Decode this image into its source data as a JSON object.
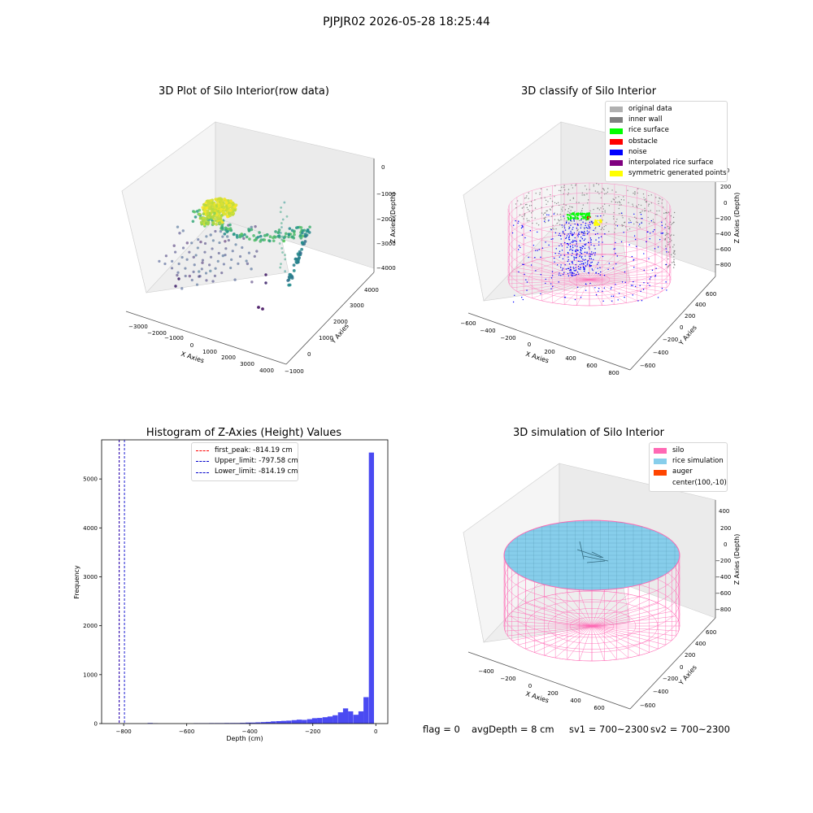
{
  "figure_title": "PJPJR02 2026-05-28 18:25:44",
  "footer": {
    "flag": "flag = 0",
    "avg_depth": "avgDepth = 8 cm",
    "sv1": "sv1 = 700~2300",
    "sv2": "sv2 = 700~2300"
  },
  "colors": {
    "histogram_bar": "#4a4af2",
    "first_peak_line": "#ff0000",
    "limit_lines": "#0000cc",
    "silo_mesh": "#ff69b4",
    "rice_surface": "#87ceeb",
    "pane_gray": "#f2f2f2",
    "grid": "#d9d9d9"
  },
  "chart_data": [
    {
      "id": "raw",
      "type": "scatter",
      "projection": "3d",
      "title": "3D Plot of Silo Interior(row data)",
      "xlabel": "X Axies",
      "ylabel": "Y Axies",
      "zlabel": "Z Axies (Depth)",
      "xticks": [
        "−3000",
        "−2000",
        "−1000",
        "0",
        "1000",
        "2000",
        "3000",
        "4000"
      ],
      "yticks": [
        "−1000",
        "0",
        "1000",
        "2000",
        "3000",
        "4000"
      ],
      "zticks": [
        "0",
        "−1000",
        "−2000",
        "−3000",
        "−4000"
      ],
      "colormap": "viridis"
    },
    {
      "id": "classify",
      "type": "scatter",
      "projection": "3d",
      "title": "3D classify of Silo Interior",
      "xlabel": "X Axies",
      "ylabel": "Y Axies",
      "zlabel": "Z Axies (Depth)",
      "xticks": [
        "−600",
        "−400",
        "−200",
        "0",
        "200",
        "400",
        "600",
        "800"
      ],
      "yticks": [
        "−600",
        "−400",
        "−200",
        "0",
        "200",
        "400",
        "600"
      ],
      "zticks": [
        "400",
        "200",
        "0",
        "−200",
        "−400",
        "−600",
        "−800"
      ],
      "legend_position": "top-right",
      "legend": [
        {
          "label": "original data",
          "color": "#b0b0b0"
        },
        {
          "label": "inner wall",
          "color": "#808080"
        },
        {
          "label": "rice surface",
          "color": "#00ff00"
        },
        {
          "label": "obstacle",
          "color": "#ff0000"
        },
        {
          "label": "noise",
          "color": "#0000ff"
        },
        {
          "label": "interpolated rice surface",
          "color": "#800080"
        },
        {
          "label": "symmetric generated points",
          "color": "#ffff00"
        }
      ]
    },
    {
      "id": "hist",
      "type": "bar",
      "title": "Histogram of Z-Axies (Height) Values",
      "xlabel": "Depth (cm)",
      "ylabel": "Frequency",
      "xlim": [
        -870,
        38
      ],
      "ylim": [
        0,
        5800
      ],
      "xticks": [
        -800,
        -600,
        -400,
        -200,
        0
      ],
      "yticks": [
        0,
        1000,
        2000,
        3000,
        4000,
        5000
      ],
      "bin_width": 16.3,
      "bins": [
        {
          "x": -716,
          "count": 12
        },
        {
          "x": -700,
          "count": 5
        },
        {
          "x": -570,
          "count": 8
        },
        {
          "x": -553,
          "count": 8
        },
        {
          "x": -537,
          "count": 8
        },
        {
          "x": -521,
          "count": 10
        },
        {
          "x": -504,
          "count": 10
        },
        {
          "x": -488,
          "count": 10
        },
        {
          "x": -472,
          "count": 12
        },
        {
          "x": -455,
          "count": 12
        },
        {
          "x": -439,
          "count": 12
        },
        {
          "x": -423,
          "count": 15
        },
        {
          "x": -406,
          "count": 20
        },
        {
          "x": -390,
          "count": 20
        },
        {
          "x": -374,
          "count": 25
        },
        {
          "x": -357,
          "count": 30
        },
        {
          "x": -341,
          "count": 35
        },
        {
          "x": -325,
          "count": 45
        },
        {
          "x": -308,
          "count": 50
        },
        {
          "x": -292,
          "count": 55
        },
        {
          "x": -276,
          "count": 60
        },
        {
          "x": -259,
          "count": 70
        },
        {
          "x": -243,
          "count": 80
        },
        {
          "x": -227,
          "count": 75
        },
        {
          "x": -210,
          "count": 90
        },
        {
          "x": -194,
          "count": 110
        },
        {
          "x": -178,
          "count": 115
        },
        {
          "x": -161,
          "count": 130
        },
        {
          "x": -145,
          "count": 145
        },
        {
          "x": -129,
          "count": 170
        },
        {
          "x": -112,
          "count": 230
        },
        {
          "x": -96,
          "count": 310
        },
        {
          "x": -80,
          "count": 250
        },
        {
          "x": -63,
          "count": 180
        },
        {
          "x": -47,
          "count": 250
        },
        {
          "x": -31,
          "count": 540
        },
        {
          "x": -14,
          "count": 5540
        }
      ],
      "lines": [
        {
          "label": "first_peak: -814.19 cm",
          "x": -814.19,
          "color": "#ff0000"
        },
        {
          "label": "Upper_limit: -797.58 cm",
          "x": -797.58,
          "color": "#0000cc"
        },
        {
          "label": "Lower_limit: -814.19 cm",
          "x": -814.19,
          "color": "#0000cc"
        }
      ],
      "legend_position": "upper-center"
    },
    {
      "id": "sim",
      "type": "scatter",
      "projection": "3d",
      "title": "3D simulation of Silo Interior",
      "xlabel": "X Axies",
      "ylabel": "Y Axies",
      "zlabel": "Z Axies (Depth)",
      "xticks": [
        "−400",
        "−200",
        "0",
        "200",
        "400",
        "600"
      ],
      "yticks": [
        "−600",
        "−400",
        "−200",
        "0",
        "200",
        "400",
        "600"
      ],
      "zticks": [
        "400",
        "200",
        "0",
        "−200",
        "−400",
        "−600",
        "−800"
      ],
      "legend_position": "top-right",
      "legend": [
        {
          "label": "silo",
          "color": "#ff69b4"
        },
        {
          "label": "rice simulation",
          "color": "#87ceeb"
        },
        {
          "label": "auger",
          "color": "#ff4500"
        },
        {
          "label": "center(100,-10)",
          "color": ""
        }
      ]
    }
  ]
}
